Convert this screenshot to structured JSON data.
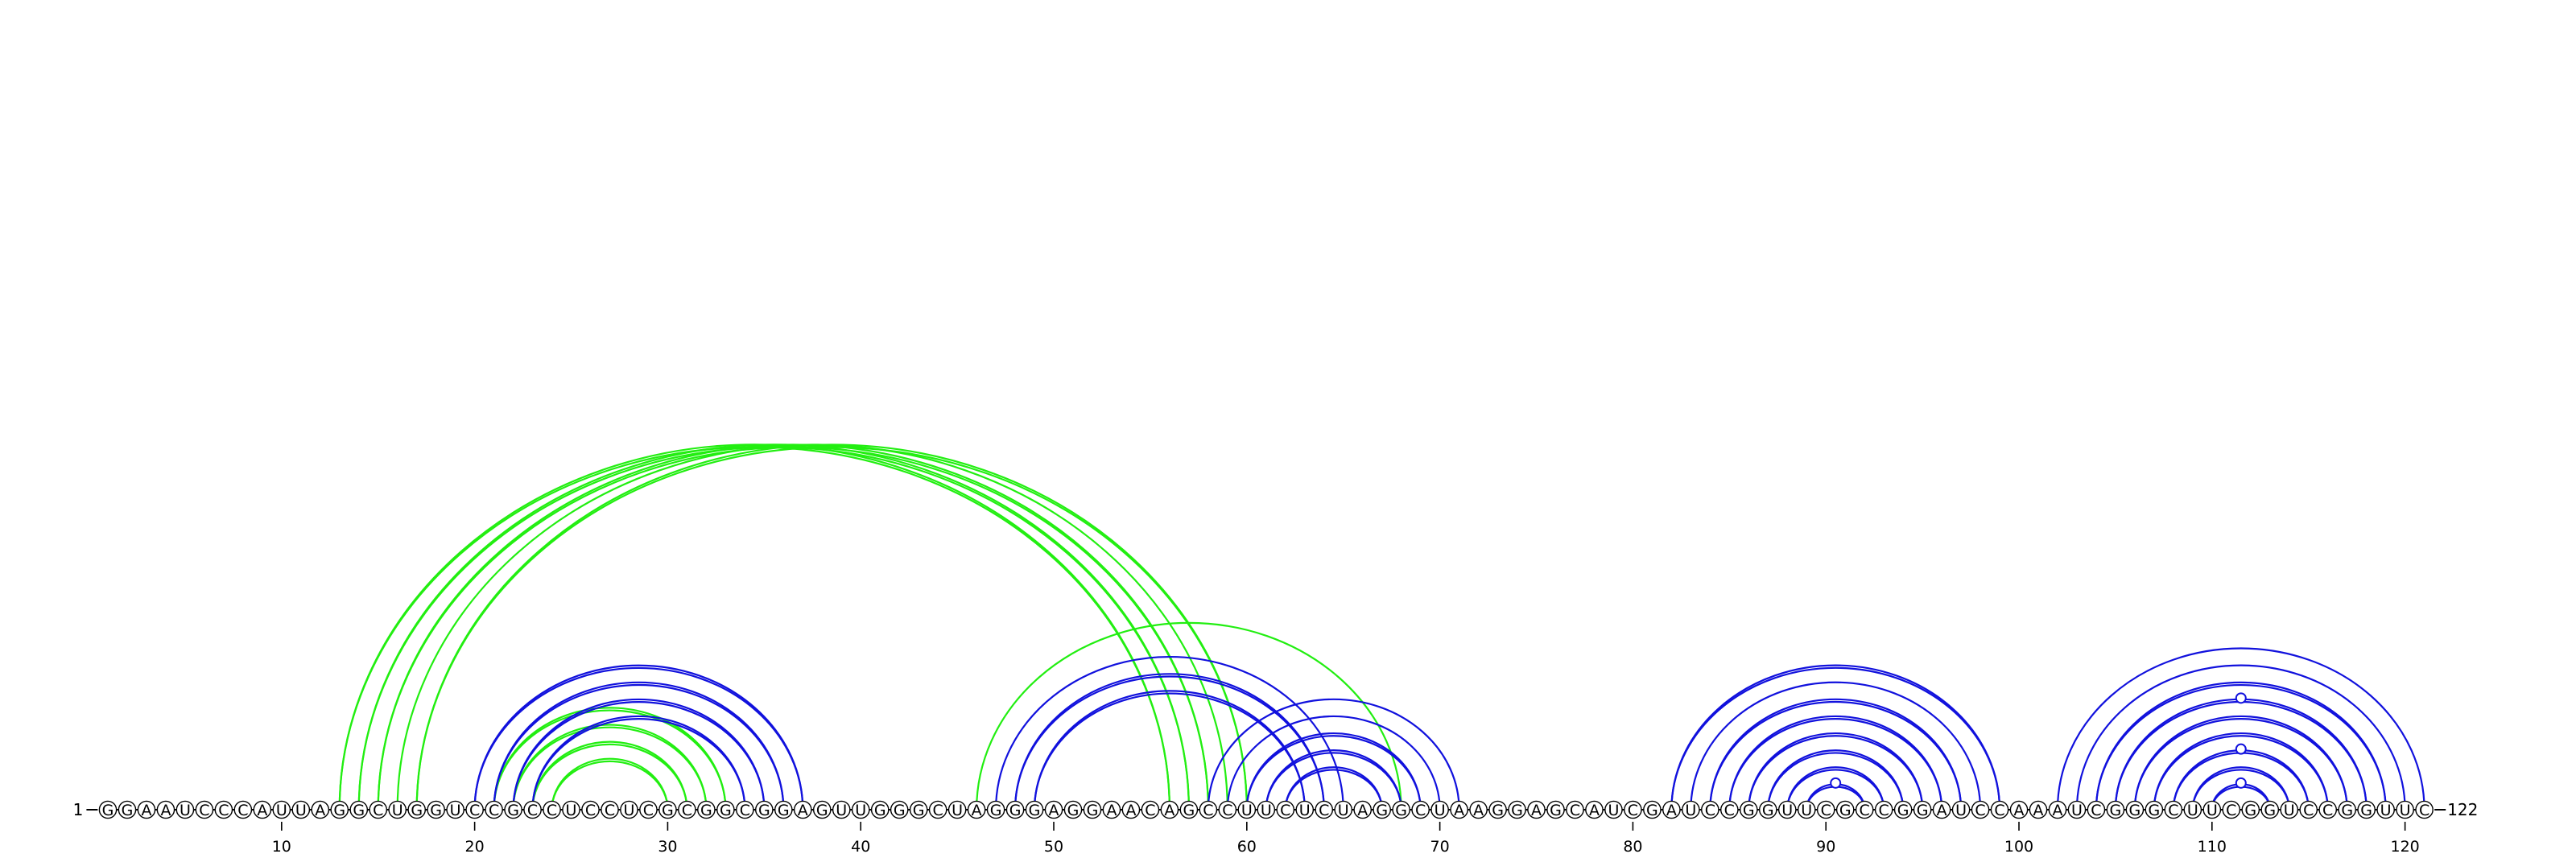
{
  "sequence": "GGAAUCCCAUUAGGCUGGUCCGCCUCCUCGCGGCGGAGUUGGGCUAGGGAGGAACAGCCUUCUCUAGGCUAAGGAGCAUCGAUCCGGUUCGCCGGAUCCAAAUCGGGCUUCGGUCCGGUUC",
  "start_label": "1",
  "end_label": "122",
  "ticks": [
    {
      "pos": 10,
      "label": "10"
    },
    {
      "pos": 20,
      "label": "20"
    },
    {
      "pos": 30,
      "label": "30"
    },
    {
      "pos": 40,
      "label": "40"
    },
    {
      "pos": 50,
      "label": "50"
    },
    {
      "pos": 60,
      "label": "60"
    },
    {
      "pos": 70,
      "label": "70"
    },
    {
      "pos": 80,
      "label": "80"
    },
    {
      "pos": 90,
      "label": "90"
    },
    {
      "pos": 100,
      "label": "100"
    },
    {
      "pos": 110,
      "label": "110"
    },
    {
      "pos": 120,
      "label": "120"
    }
  ],
  "colors": {
    "green": "#22ee11",
    "blue": "#1111dd",
    "text": "#000000",
    "nt_stroke": "#000000",
    "nt_fill": "#ffffff"
  },
  "arcs": [
    {
      "i": 13,
      "j": 56,
      "color": "green",
      "double": true
    },
    {
      "i": 14,
      "j": 57,
      "color": "green",
      "double": true
    },
    {
      "i": 15,
      "j": 58,
      "color": "green",
      "double": true
    },
    {
      "i": 16,
      "j": 59,
      "color": "green",
      "double": false
    },
    {
      "i": 17,
      "j": 60,
      "color": "green",
      "double": true
    },
    {
      "i": 21,
      "j": 33,
      "color": "green",
      "double": true
    },
    {
      "i": 22,
      "j": 32,
      "color": "green",
      "double": true
    },
    {
      "i": 23,
      "j": 31,
      "color": "green",
      "double": true
    },
    {
      "i": 24,
      "j": 30,
      "color": "green",
      "double": true
    },
    {
      "i": 46,
      "j": 68,
      "color": "green",
      "double": false
    },
    {
      "i": 20,
      "j": 37,
      "color": "blue",
      "double": true
    },
    {
      "i": 21,
      "j": 36,
      "color": "blue",
      "double": true
    },
    {
      "i": 22,
      "j": 35,
      "color": "blue",
      "double": true
    },
    {
      "i": 23,
      "j": 34,
      "color": "blue",
      "double": true
    },
    {
      "i": 47,
      "j": 65,
      "color": "blue",
      "double": false
    },
    {
      "i": 48,
      "j": 64,
      "color": "blue",
      "double": true
    },
    {
      "i": 49,
      "j": 63,
      "color": "blue",
      "double": true
    },
    {
      "i": 58,
      "j": 71,
      "color": "blue",
      "double": false
    },
    {
      "i": 59,
      "j": 70,
      "color": "blue",
      "double": false
    },
    {
      "i": 60,
      "j": 69,
      "color": "blue",
      "double": true
    },
    {
      "i": 61,
      "j": 68,
      "color": "blue",
      "double": true
    },
    {
      "i": 62,
      "j": 67,
      "color": "blue",
      "double": true
    },
    {
      "i": 82,
      "j": 99,
      "color": "blue",
      "double": true
    },
    {
      "i": 83,
      "j": 98,
      "color": "blue",
      "double": false
    },
    {
      "i": 84,
      "j": 97,
      "color": "blue",
      "double": true
    },
    {
      "i": 85,
      "j": 96,
      "color": "blue",
      "double": true
    },
    {
      "i": 86,
      "j": 95,
      "color": "blue",
      "double": true
    },
    {
      "i": 87,
      "j": 94,
      "color": "blue",
      "double": true
    },
    {
      "i": 88,
      "j": 93,
      "color": "blue",
      "double": true
    },
    {
      "i": 89,
      "j": 92,
      "color": "blue",
      "double": true
    },
    {
      "i": 102,
      "j": 121,
      "color": "blue",
      "double": false
    },
    {
      "i": 103,
      "j": 120,
      "color": "blue",
      "double": false
    },
    {
      "i": 104,
      "j": 119,
      "color": "blue",
      "double": true
    },
    {
      "i": 105,
      "j": 118,
      "color": "blue",
      "double": true
    },
    {
      "i": 106,
      "j": 117,
      "color": "blue",
      "double": true
    },
    {
      "i": 107,
      "j": 116,
      "color": "blue",
      "double": true
    },
    {
      "i": 108,
      "j": 115,
      "color": "blue",
      "double": true
    },
    {
      "i": 109,
      "j": 114,
      "color": "blue",
      "double": true
    },
    {
      "i": 110,
      "j": 113,
      "color": "blue",
      "double": true
    }
  ],
  "markers": [
    {
      "pos": 90.5,
      "arc_i": 89,
      "arc_j": 92
    },
    {
      "pos": 111.5,
      "arc_i": 110,
      "arc_j": 113
    },
    {
      "pos": 111.5,
      "arc_i": 108,
      "arc_j": 115
    },
    {
      "pos": 111.5,
      "arc_i": 105,
      "arc_j": 118
    }
  ]
}
